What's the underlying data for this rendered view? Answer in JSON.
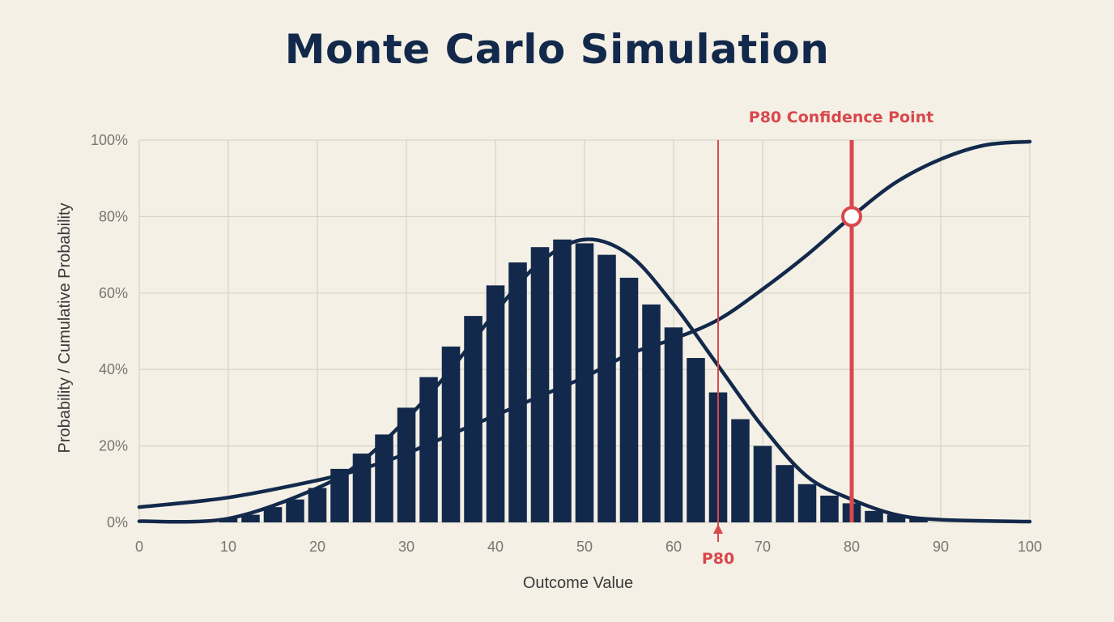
{
  "chart_data": {
    "type": "bar",
    "title": "Monte Carlo Simulation",
    "xlabel": "Outcome Value",
    "ylabel": "Probability / Cumulative Probability",
    "xlim": [
      0,
      100
    ],
    "ylim": [
      0,
      100
    ],
    "x_ticks": [
      "0",
      "10",
      "20",
      "30",
      "40",
      "50",
      "60",
      "70",
      "80",
      "90",
      "100"
    ],
    "y_ticks": [
      "0%",
      "20%",
      "40%",
      "60%",
      "80%",
      "100%"
    ],
    "grid": true,
    "colors": {
      "bars": "#13294b",
      "curves": "#13294b",
      "annotation": "#d9484c",
      "background": "#f4f0e6",
      "grid": "#d8d2c6"
    },
    "histogram": {
      "x": [
        10,
        12.5,
        15,
        17.5,
        20,
        22.5,
        25,
        27.5,
        30,
        32.5,
        35,
        37.5,
        40,
        42.5,
        45,
        47.5,
        50,
        52.5,
        55,
        57.5,
        60,
        62.5,
        65,
        67.5,
        70,
        72.5,
        75,
        77.5,
        80,
        82.5,
        85,
        87.5
      ],
      "values": [
        1,
        2,
        4,
        6,
        9,
        14,
        18,
        23,
        30,
        38,
        46,
        54,
        62,
        68,
        72,
        74,
        73,
        70,
        64,
        57,
        51,
        43,
        34,
        27,
        20,
        15,
        10,
        7,
        5,
        3,
        2,
        1
      ]
    },
    "series": [
      {
        "type": "line",
        "x": [
          0,
          10,
          20,
          25,
          30,
          35,
          40,
          45,
          50,
          55,
          60,
          65,
          70,
          75,
          80,
          85,
          90,
          100
        ],
        "values": [
          0.3,
          1,
          9,
          16,
          27,
          40,
          55,
          68,
          74,
          70,
          57,
          41,
          25,
          12,
          6,
          2,
          0.7,
          0.2
        ]
      },
      {
        "type": "line",
        "x": [
          0,
          10,
          20,
          25,
          30,
          35,
          40,
          45,
          50,
          55,
          60,
          65,
          70,
          75,
          80,
          85,
          90,
          95,
          100
        ],
        "values": [
          4,
          6.5,
          11,
          14,
          18,
          23,
          28,
          33,
          38,
          44,
          48,
          53,
          61,
          70,
          80,
          89,
          95,
          98.7,
          99.6
        ]
      }
    ],
    "annotations": [
      {
        "label": "P80",
        "x": 65
      },
      {
        "label": "P80 Confidence Point",
        "x": 80,
        "y": 80
      }
    ]
  }
}
